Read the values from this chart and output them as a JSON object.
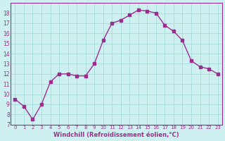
{
  "hours": [
    0,
    1,
    2,
    3,
    4,
    5,
    6,
    7,
    8,
    9,
    10,
    11,
    12,
    13,
    14,
    15,
    16,
    17,
    18,
    19,
    20,
    21,
    22,
    23
  ],
  "values": [
    9.5,
    8.8,
    7.5,
    9.0,
    11.2,
    12.0,
    12.0,
    11.8,
    11.8,
    13.0,
    15.3,
    17.0,
    17.3,
    17.8,
    18.3,
    18.2,
    18.0,
    16.8,
    16.2,
    15.3,
    13.3,
    12.7,
    12.5,
    12.0
  ],
  "line_color": "#9b2d8e",
  "marker_color": "#9b2d8e",
  "bg_color": "#cff0f0",
  "grid_color": "#aadddd",
  "xlabel": "Windchill (Refroidissement éolien,°C)",
  "ylim": [
    7,
    19
  ],
  "yticks": [
    7,
    8,
    9,
    10,
    11,
    12,
    13,
    14,
    15,
    16,
    17,
    18
  ],
  "xticks": [
    0,
    1,
    2,
    3,
    4,
    5,
    6,
    7,
    8,
    9,
    10,
    11,
    12,
    13,
    14,
    15,
    16,
    17,
    18,
    19,
    20,
    21,
    22,
    23
  ],
  "xtick_labels": [
    "0",
    "1",
    "2",
    "3",
    "4",
    "5",
    "6",
    "7",
    "8",
    "9",
    "10",
    "11",
    "12",
    "13",
    "14",
    "15",
    "16",
    "17",
    "18",
    "19",
    "20",
    "21",
    "22",
    "23"
  ],
  "xlabel_color": "#9b2d8e",
  "tick_color": "#9b2d8e",
  "axis_color": "#9b2d8e"
}
